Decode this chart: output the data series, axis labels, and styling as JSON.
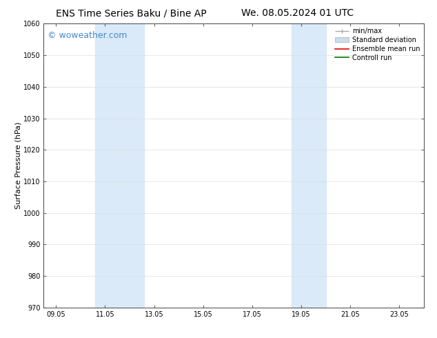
{
  "title_left": "ENS Time Series Baku / Bine AP",
  "title_right": "We. 08.05.2024 01 UTC",
  "ylabel": "Surface Pressure (hPa)",
  "ylim": [
    970,
    1060
  ],
  "yticks": [
    970,
    980,
    990,
    1000,
    1010,
    1020,
    1030,
    1040,
    1050,
    1060
  ],
  "xtick_labels": [
    "09.05",
    "11.05",
    "13.05",
    "15.05",
    "17.05",
    "19.05",
    "21.05",
    "23.05"
  ],
  "xtick_positions": [
    0,
    2,
    4,
    6,
    8,
    10,
    12,
    14
  ],
  "xlim": [
    -0.5,
    15
  ],
  "shaded_regions": [
    {
      "xmin": 1.6,
      "xmax": 3.6,
      "color": "#daeaf8"
    },
    {
      "xmin": 9.6,
      "xmax": 11.0,
      "color": "#daeaf8"
    }
  ],
  "watermark_text": "© woweather.com",
  "watermark_color": "#4488cc",
  "watermark_fontsize": 9,
  "bg_color": "#ffffff",
  "plot_bg_color": "#ffffff",
  "title_fontsize": 10,
  "tick_fontsize": 7,
  "ylabel_fontsize": 8,
  "legend_fontsize": 7,
  "minmax_color": "#aaaaaa",
  "std_color": "#ccdded",
  "ensemble_color": "#dd0000",
  "control_color": "#007700"
}
